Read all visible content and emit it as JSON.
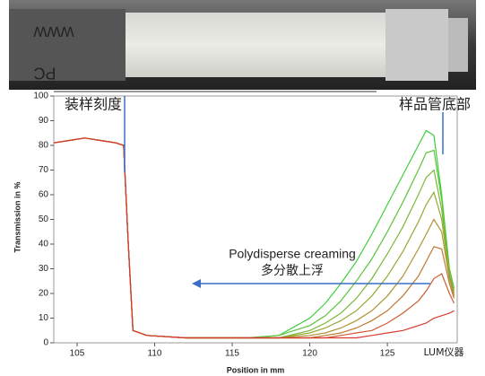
{
  "chart_data": {
    "type": "line",
    "xlabel": "Position in mm",
    "ylabel": "Transmission in %",
    "x": [
      103.5,
      104.5,
      105.5,
      106.5,
      107.5,
      108.0,
      108.3,
      108.6,
      109.5,
      112,
      116,
      118,
      120,
      121,
      122,
      123,
      124,
      125,
      126,
      127,
      127.5,
      128,
      128.5,
      129,
      129.3
    ],
    "xlim": [
      103.5,
      129.5
    ],
    "xticks": [
      105,
      110,
      115,
      120,
      125
    ],
    "ylim": [
      0,
      100
    ],
    "yticks": [
      0,
      10,
      20,
      30,
      40,
      50,
      60,
      70,
      80,
      90,
      100
    ],
    "grid": false,
    "series": [
      {
        "color": "#3ccf3c",
        "values": [
          81,
          82,
          83,
          82,
          81,
          80,
          40,
          5,
          3,
          2,
          2,
          3,
          10,
          16,
          24,
          33,
          44,
          56,
          68,
          80,
          86,
          84,
          60,
          30,
          22
        ]
      },
      {
        "color": "#5cc43a",
        "values": [
          81,
          82,
          83,
          82,
          81,
          80,
          40,
          5,
          3,
          2,
          2,
          3,
          7,
          11,
          17,
          25,
          34,
          45,
          57,
          70,
          77,
          78,
          58,
          30,
          22
        ]
      },
      {
        "color": "#7ab838",
        "values": [
          81,
          82,
          83,
          82,
          81,
          80,
          40,
          5,
          3,
          2,
          2,
          2,
          5,
          8,
          12,
          18,
          26,
          36,
          47,
          60,
          67,
          70,
          54,
          28,
          21
        ]
      },
      {
        "color": "#96a836",
        "values": [
          81,
          82,
          83,
          82,
          81,
          80,
          40,
          5,
          3,
          2,
          2,
          2,
          4,
          6,
          9,
          13,
          19,
          27,
          37,
          49,
          56,
          61,
          50,
          27,
          20
        ]
      },
      {
        "color": "#ad9334",
        "values": [
          81,
          82,
          83,
          82,
          81,
          80,
          40,
          5,
          3,
          2,
          2,
          2,
          3,
          4,
          6,
          9,
          13,
          19,
          27,
          38,
          44,
          50,
          45,
          26,
          19
        ]
      },
      {
        "color": "#bf7a33",
        "values": [
          81,
          82,
          83,
          82,
          81,
          80,
          40,
          5,
          3,
          2,
          2,
          2,
          2,
          3,
          4,
          6,
          9,
          13,
          19,
          27,
          33,
          39,
          38,
          24,
          18
        ]
      },
      {
        "color": "#cc5c32",
        "values": [
          81,
          82,
          83,
          82,
          81,
          80,
          40,
          5,
          3,
          2,
          2,
          2,
          2,
          2,
          3,
          4,
          5,
          8,
          12,
          17,
          21,
          26,
          28,
          20,
          16
        ]
      },
      {
        "color": "#d63a30",
        "values": [
          81,
          82,
          83,
          82,
          81,
          80,
          40,
          5,
          3,
          2,
          2,
          2,
          2,
          2,
          2,
          2,
          3,
          4,
          5,
          7,
          8,
          10,
          11,
          12,
          13
        ]
      }
    ],
    "annotations": {
      "fill_mark": "装样刻度",
      "tube_bottom": "样品管底部",
      "process_en": "Polydisperse creaming",
      "process_cn": "多分散上浮",
      "watermark": "LUM仪器"
    },
    "photo_labels": [
      "WWW",
      "PC"
    ]
  }
}
